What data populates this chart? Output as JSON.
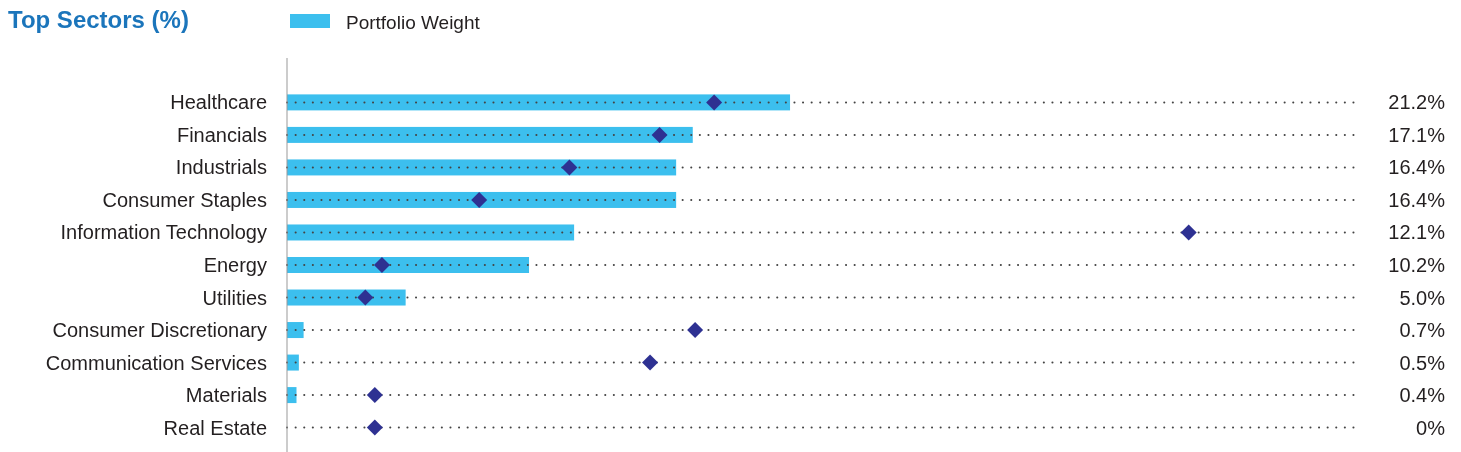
{
  "chart_data": {
    "type": "bar",
    "orientation": "horizontal",
    "title": "Top Sectors (%)",
    "legend": "top",
    "grid": "y",
    "categories": [
      "Healthcare",
      "Financials",
      "Industrials",
      "Consumer Staples",
      "Information Technology",
      "Energy",
      "Utilities",
      "Consumer Discretionary",
      "Communication Services",
      "Materials",
      "Real Estate"
    ],
    "series": [
      {
        "name": "Portfolio Weight",
        "color": "#3cbfee",
        "values": [
          21.2,
          17.1,
          16.4,
          16.4,
          12.1,
          10.2,
          5.0,
          0.7,
          0.5,
          0.4,
          0
        ],
        "value_labels": [
          "21.2%",
          "17.1%",
          "16.4%",
          "16.4%",
          "12.1%",
          "10.2%",
          "5.0%",
          "0.7%",
          "0.5%",
          "0.4%",
          "0%"
        ]
      },
      {
        "type": "scatter",
        "marker": "diamond",
        "color": "#2e3192",
        "values": [
          18.0,
          15.7,
          11.9,
          8.1,
          38.0,
          4.0,
          3.3,
          17.2,
          15.3,
          3.7,
          3.7
        ]
      }
    ]
  }
}
